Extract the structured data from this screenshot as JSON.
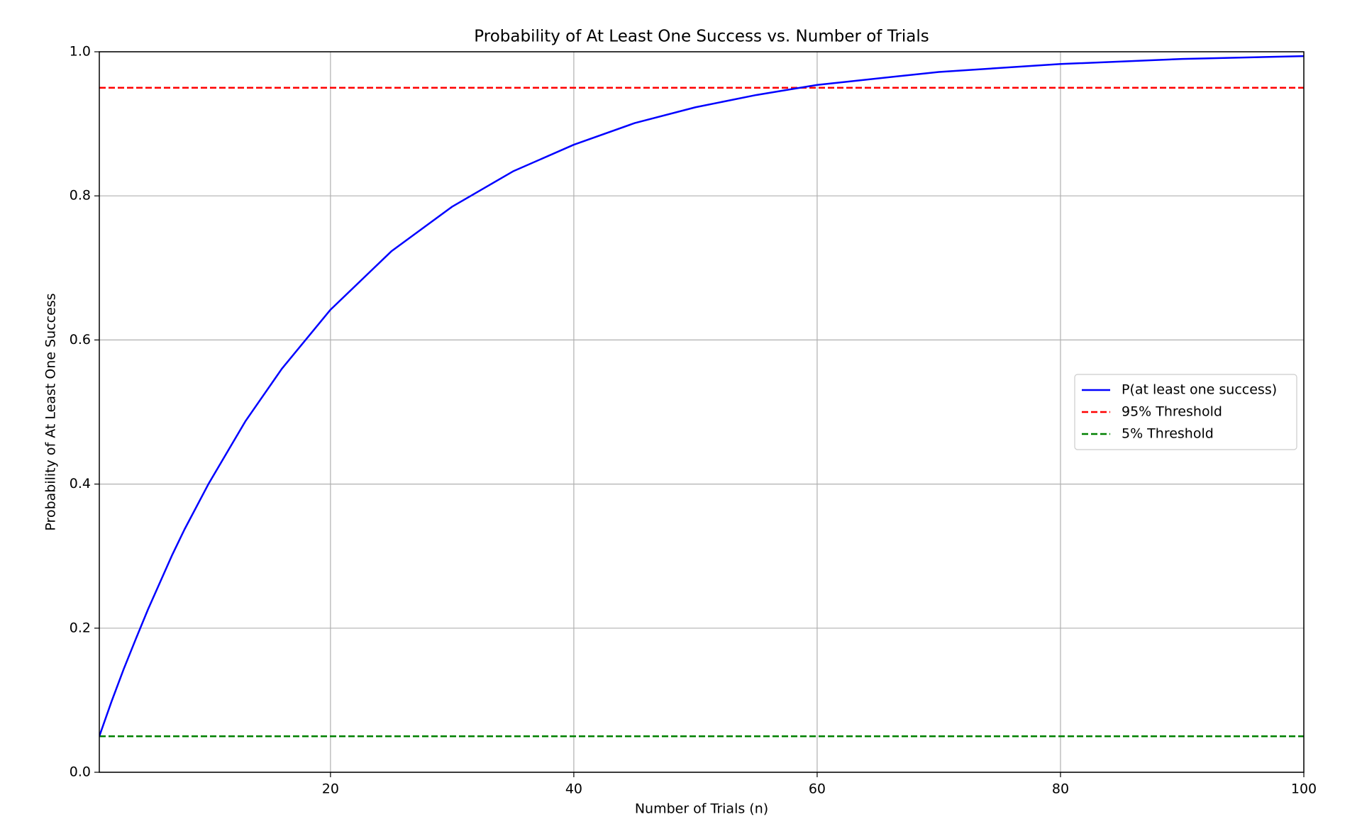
{
  "chart_data": {
    "type": "line",
    "title": "Probability of At Least One Success vs. Number of Trials",
    "x_label": "Number of Trials (n)",
    "y_label": "Probability of At Least One Success",
    "x": [
      1,
      2,
      3,
      4,
      5,
      7,
      8,
      10,
      13,
      16,
      20,
      25,
      30,
      35,
      40,
      45,
      50,
      55,
      60,
      70,
      80,
      90,
      100
    ],
    "series": [
      {
        "name": "P(at least one success)",
        "color": "#0000ff",
        "values": [
          0.05,
          0.098,
          0.143,
          0.185,
          0.226,
          0.302,
          0.337,
          0.401,
          0.487,
          0.56,
          0.642,
          0.723,
          0.785,
          0.834,
          0.871,
          0.901,
          0.923,
          0.94,
          0.954,
          0.972,
          0.983,
          0.99,
          0.994
        ]
      }
    ],
    "reference_lines": [
      {
        "name": "95% Threshold",
        "value": 0.95,
        "color": "#ff0000",
        "style": "dashed"
      },
      {
        "name": "5% Threshold",
        "value": 0.05,
        "color": "#008000",
        "style": "dashed"
      }
    ],
    "xlim": [
      1,
      100
    ],
    "xticks": [
      20,
      40,
      60,
      80,
      100
    ],
    "ylim": [
      0,
      1
    ],
    "yticks": [
      {
        "value": 0,
        "label": "0.0"
      },
      0.2,
      0.4,
      0.6,
      0.8,
      {
        "value": 1,
        "label": "1.0"
      }
    ],
    "grid": true,
    "legend": "center right"
  }
}
